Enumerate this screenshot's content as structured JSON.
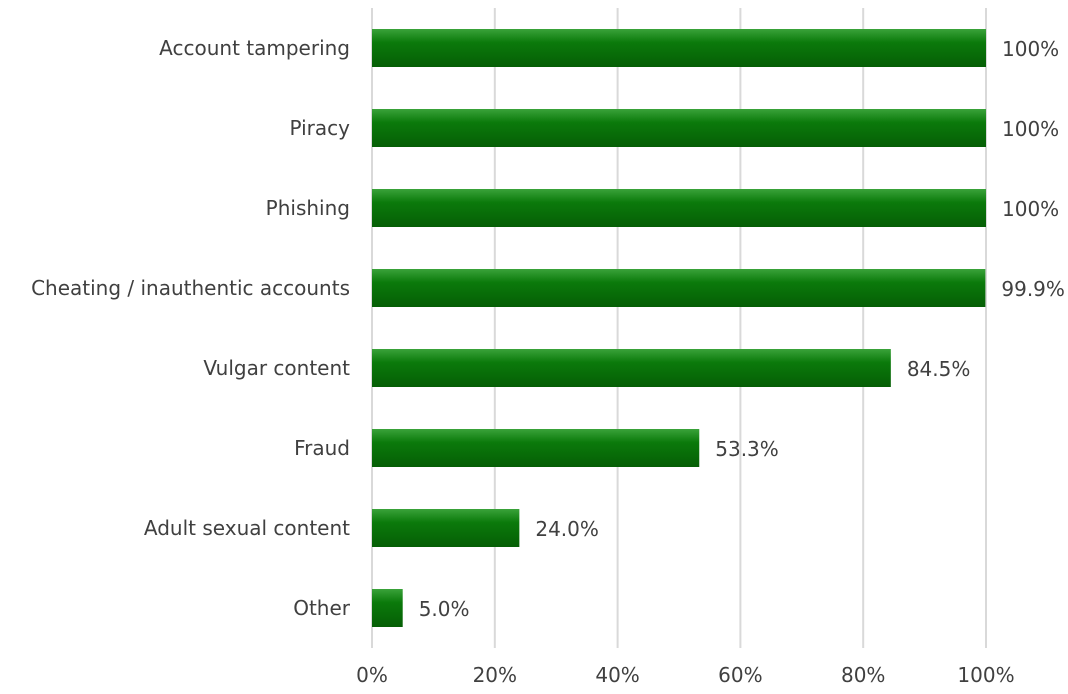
{
  "chart_data": {
    "type": "bar",
    "orientation": "horizontal",
    "title": "",
    "xlabel": "",
    "ylabel": "",
    "categories": [
      "Account tampering",
      "Piracy",
      "Phishing",
      "Cheating / inauthentic accounts",
      "Vulgar content",
      "Fraud",
      "Adult sexual content",
      "Other"
    ],
    "values": [
      100,
      100,
      100,
      99.9,
      84.5,
      53.3,
      24.0,
      5.0
    ],
    "data_labels": [
      "100%",
      "100%",
      "100%",
      "99.9%",
      "84.5%",
      "53.3%",
      "24.0%",
      "5.0%"
    ],
    "xlim": [
      0,
      100
    ],
    "x_ticks": [
      0,
      20,
      40,
      60,
      80,
      100
    ],
    "x_tick_labels": [
      "0%",
      "20%",
      "40%",
      "60%",
      "80%",
      "100%"
    ],
    "grid": "vertical",
    "legend": "none",
    "colors": {
      "bar_top": "#3aa23a",
      "bar_main": "#0b7a0b",
      "bar_bottom": "#055e05",
      "grid": "#d9d9d9",
      "text": "#404040"
    }
  }
}
